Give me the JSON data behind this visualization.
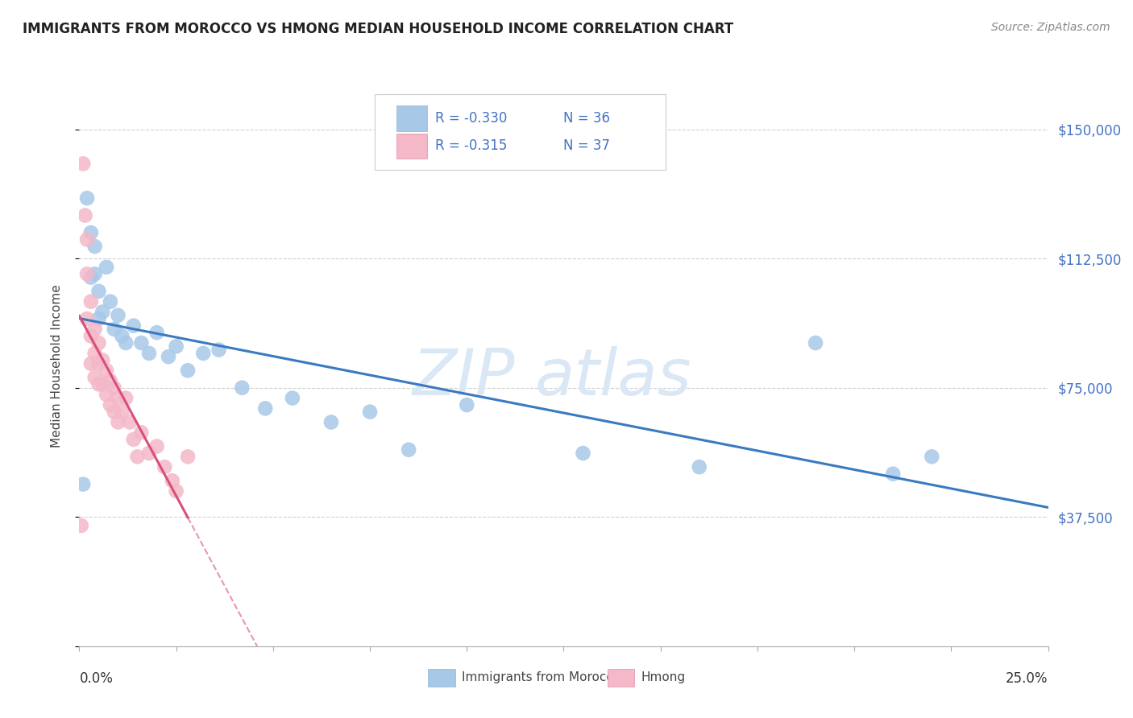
{
  "title": "IMMIGRANTS FROM MOROCCO VS HMONG MEDIAN HOUSEHOLD INCOME CORRELATION CHART",
  "source": "Source: ZipAtlas.com",
  "ylabel": "Median Household Income",
  "yticks": [
    0,
    37500,
    75000,
    112500,
    150000
  ],
  "ytick_labels": [
    "",
    "$37,500",
    "$75,000",
    "$112,500",
    "$150,000"
  ],
  "xlim": [
    0.0,
    0.25
  ],
  "ylim": [
    0,
    162500
  ],
  "legend_r_morocco": "R = -0.330",
  "legend_n_morocco": "N = 36",
  "legend_r_hmong": "R = -0.315",
  "legend_n_hmong": "N = 37",
  "legend_label_morocco": "Immigrants from Morocco",
  "legend_label_hmong": "Hmong",
  "color_morocco": "#a8c8e8",
  "color_hmong": "#f4b8c8",
  "trendline_morocco_color": "#3a7abf",
  "trendline_hmong_color": "#d94f7a",
  "watermark_zip": "ZIP",
  "watermark_atlas": "atlas",
  "morocco_x": [
    0.001,
    0.002,
    0.003,
    0.003,
    0.004,
    0.004,
    0.005,
    0.005,
    0.006,
    0.007,
    0.008,
    0.009,
    0.01,
    0.011,
    0.012,
    0.014,
    0.016,
    0.018,
    0.02,
    0.023,
    0.025,
    0.028,
    0.032,
    0.036,
    0.042,
    0.048,
    0.055,
    0.065,
    0.075,
    0.085,
    0.1,
    0.13,
    0.16,
    0.19,
    0.21,
    0.22
  ],
  "morocco_y": [
    47000,
    130000,
    120000,
    107000,
    116000,
    108000,
    103000,
    95000,
    97000,
    110000,
    100000,
    92000,
    96000,
    90000,
    88000,
    93000,
    88000,
    85000,
    91000,
    84000,
    87000,
    80000,
    85000,
    86000,
    75000,
    69000,
    72000,
    65000,
    68000,
    57000,
    70000,
    56000,
    52000,
    88000,
    50000,
    55000
  ],
  "hmong_x": [
    0.0005,
    0.001,
    0.0015,
    0.002,
    0.002,
    0.002,
    0.003,
    0.003,
    0.003,
    0.004,
    0.004,
    0.004,
    0.005,
    0.005,
    0.005,
    0.006,
    0.006,
    0.007,
    0.007,
    0.008,
    0.008,
    0.009,
    0.009,
    0.01,
    0.01,
    0.011,
    0.012,
    0.013,
    0.014,
    0.015,
    0.016,
    0.018,
    0.02,
    0.022,
    0.024,
    0.025,
    0.028
  ],
  "hmong_y": [
    35000,
    140000,
    125000,
    118000,
    108000,
    95000,
    100000,
    90000,
    82000,
    92000,
    85000,
    78000,
    88000,
    82000,
    76000,
    83000,
    76000,
    80000,
    73000,
    77000,
    70000,
    75000,
    68000,
    72000,
    65000,
    68000,
    72000,
    65000,
    60000,
    55000,
    62000,
    56000,
    58000,
    52000,
    48000,
    45000,
    55000
  ],
  "background_color": "#ffffff",
  "grid_color": "#cccccc",
  "title_color": "#222222"
}
